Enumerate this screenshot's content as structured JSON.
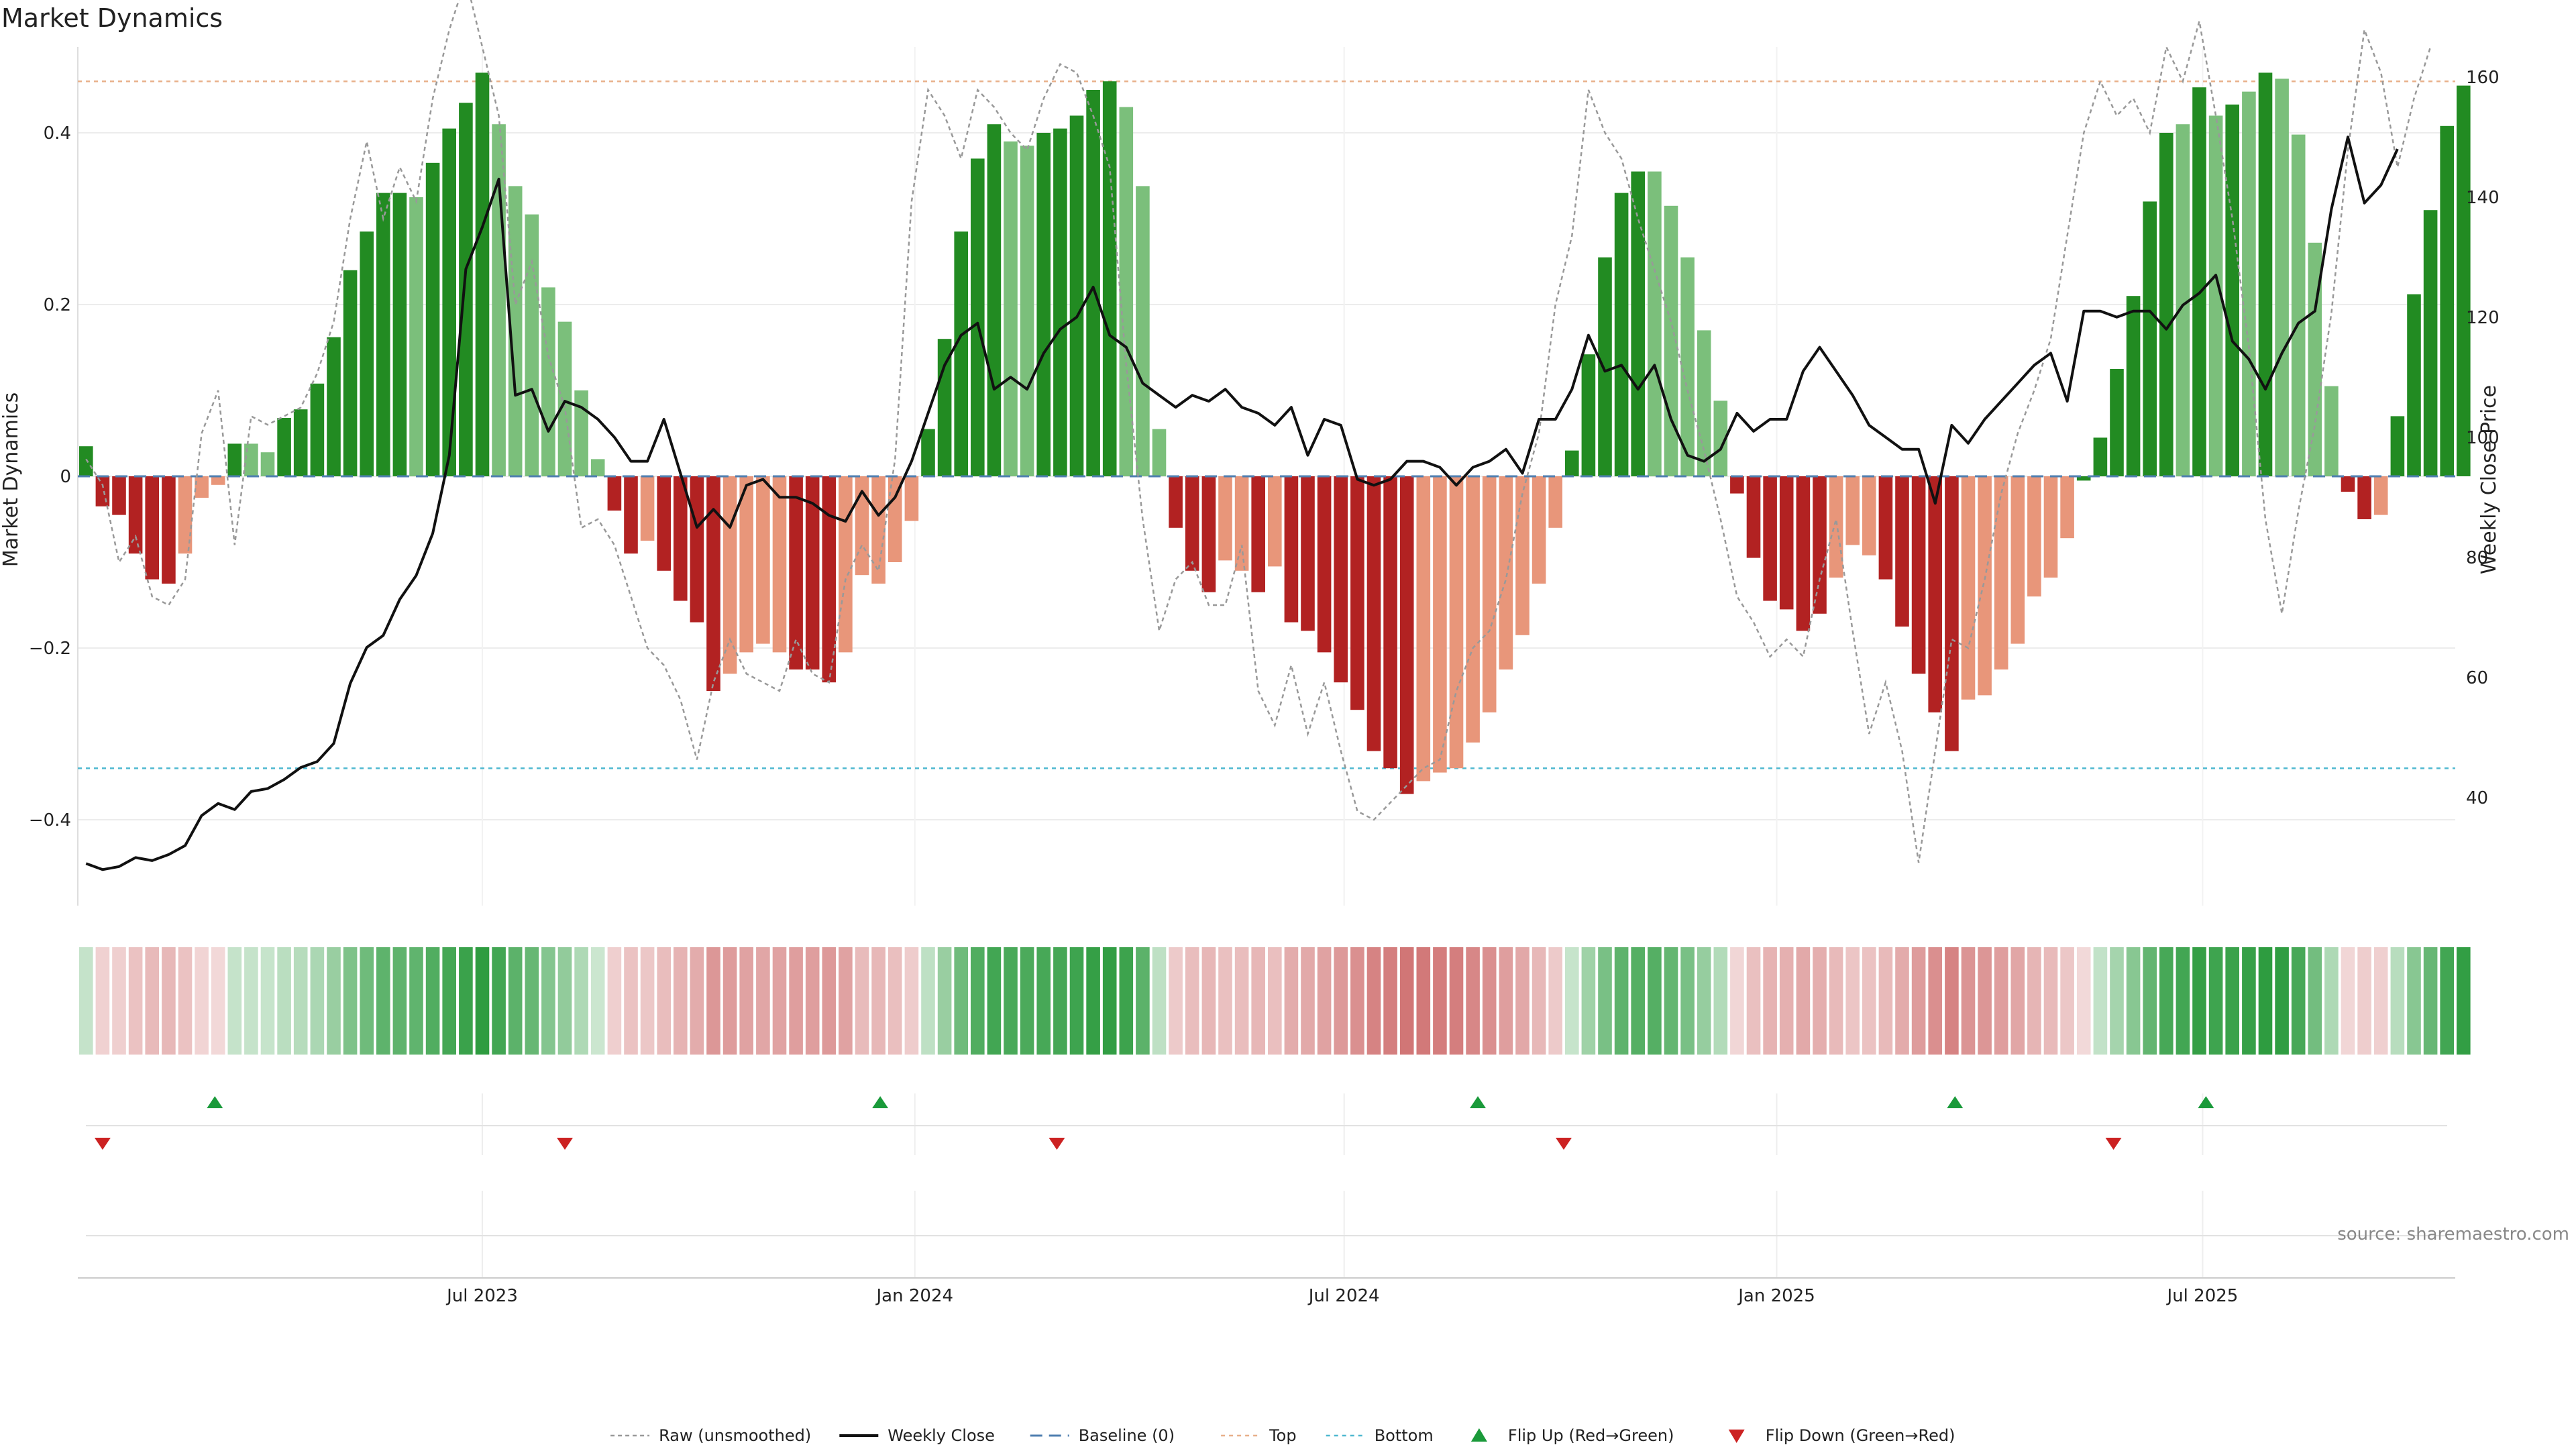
{
  "chart_data": {
    "type": "bar",
    "title": "Market Dynamics",
    "ylabel_left": "Market Dynamics",
    "ylabel_right": "Weekly Close Price",
    "ylim_left": [
      -0.5,
      0.5
    ],
    "ylim_right": [
      22,
      165
    ],
    "yticks_left": [
      "0.4",
      "0.2",
      "0",
      "−0.2",
      "−0.4"
    ],
    "yticks_left_values": [
      0.4,
      0.2,
      0,
      -0.2,
      -0.4
    ],
    "yticks_right": [
      "160",
      "140",
      "120",
      "100",
      "80",
      "60",
      "40"
    ],
    "yticks_right_values": [
      160,
      140,
      120,
      100,
      80,
      60,
      40
    ],
    "xticks": [
      {
        "label": "Jul 2023",
        "week": 24.5
      },
      {
        "label": "Jan 2024",
        "week": 50.7
      },
      {
        "label": "Jul 2024",
        "week": 76.7
      },
      {
        "label": "Jan 2025",
        "week": 102.9
      },
      {
        "label": "Jul 2025",
        "week": 128.7
      }
    ],
    "x_range": [
      0,
      144
    ],
    "top_level": 0.46,
    "bottom_level": -0.34,
    "baseline": 0,
    "values": [
      0.035,
      -0.035,
      -0.045,
      -0.09,
      -0.12,
      -0.125,
      -0.09,
      -0.025,
      -0.01,
      0.038,
      0.038,
      0.028,
      0.068,
      0.078,
      0.108,
      0.162,
      0.24,
      0.285,
      0.33,
      0.33,
      0.325,
      0.365,
      0.405,
      0.435,
      0.47,
      0.41,
      0.338,
      0.305,
      0.22,
      0.18,
      0.1,
      0.02,
      -0.04,
      -0.09,
      -0.075,
      -0.11,
      -0.145,
      -0.17,
      -0.25,
      -0.23,
      -0.205,
      -0.195,
      -0.205,
      -0.225,
      -0.225,
      -0.24,
      -0.205,
      -0.115,
      -0.125,
      -0.1,
      -0.052,
      0.055,
      0.16,
      0.285,
      0.37,
      0.41,
      0.39,
      0.385,
      0.4,
      0.405,
      0.42,
      0.45,
      0.46,
      0.43,
      0.338,
      0.055,
      -0.06,
      -0.11,
      -0.135,
      -0.098,
      -0.11,
      -0.135,
      -0.105,
      -0.17,
      -0.18,
      -0.205,
      -0.24,
      -0.272,
      -0.32,
      -0.34,
      -0.37,
      -0.355,
      -0.345,
      -0.34,
      -0.31,
      -0.275,
      -0.225,
      -0.185,
      -0.125,
      -0.06,
      0.03,
      0.142,
      0.255,
      0.33,
      0.355,
      0.355,
      0.315,
      0.255,
      0.17,
      0.088,
      -0.02,
      -0.095,
      -0.145,
      -0.155,
      -0.18,
      -0.16,
      -0.118,
      -0.08,
      -0.092,
      -0.12,
      -0.175,
      -0.23,
      -0.275,
      -0.32,
      -0.26,
      -0.255,
      -0.225,
      -0.195,
      -0.14,
      -0.118,
      -0.072,
      -0.005,
      0.045,
      0.125,
      0.21,
      0.32,
      0.4,
      0.41,
      0.453,
      0.42,
      0.433,
      0.448,
      0.47,
      0.463,
      0.398,
      0.272,
      0.105,
      -0.018,
      -0.05,
      -0.045,
      0.07,
      0.212,
      0.31,
      0.408,
      0.455
    ],
    "states": [
      "G",
      "R",
      "R",
      "R",
      "R",
      "R",
      "r",
      "r",
      "r",
      "G",
      "g",
      "g",
      "G",
      "G",
      "G",
      "G",
      "G",
      "G",
      "G",
      "G",
      "g",
      "G",
      "G",
      "G",
      "G",
      "g",
      "g",
      "g",
      "g",
      "g",
      "g",
      "g",
      "R",
      "R",
      "r",
      "R",
      "R",
      "R",
      "R",
      "r",
      "r",
      "r",
      "r",
      "R",
      "R",
      "R",
      "r",
      "r",
      "r",
      "r",
      "r",
      "G",
      "G",
      "G",
      "G",
      "G",
      "g",
      "g",
      "G",
      "G",
      "G",
      "G",
      "G",
      "g",
      "g",
      "g",
      "R",
      "R",
      "R",
      "r",
      "r",
      "R",
      "r",
      "R",
      "R",
      "R",
      "R",
      "R",
      "R",
      "R",
      "R",
      "r",
      "r",
      "r",
      "r",
      "r",
      "r",
      "r",
      "r",
      "r",
      "G",
      "G",
      "G",
      "G",
      "G",
      "g",
      "g",
      "g",
      "g",
      "g",
      "R",
      "R",
      "R",
      "R",
      "R",
      "R",
      "r",
      "r",
      "r",
      "R",
      "R",
      "R",
      "R",
      "R",
      "r",
      "r",
      "r",
      "r",
      "r",
      "r",
      "r",
      "G",
      "G",
      "G",
      "G",
      "G",
      "G",
      "g",
      "G",
      "g",
      "G",
      "g",
      "G",
      "g",
      "g",
      "g",
      "g",
      "R",
      "R",
      "r",
      "G",
      "G",
      "G",
      "G",
      "G"
    ],
    "raw_values": [
      0.02,
      -0.01,
      -0.1,
      -0.07,
      -0.14,
      -0.15,
      -0.12,
      0.05,
      0.1,
      -0.08,
      0.07,
      0.06,
      0.07,
      0.08,
      0.12,
      0.18,
      0.3,
      0.39,
      0.3,
      0.36,
      0.32,
      0.44,
      0.52,
      0.58,
      0.5,
      0.42,
      0.2,
      0.25,
      0.14,
      0.08,
      -0.06,
      -0.05,
      -0.08,
      -0.14,
      -0.2,
      -0.22,
      -0.26,
      -0.33,
      -0.24,
      -0.19,
      -0.23,
      -0.24,
      -0.25,
      -0.19,
      -0.23,
      -0.24,
      -0.12,
      -0.08,
      -0.11,
      0.02,
      0.32,
      0.45,
      0.42,
      0.37,
      0.45,
      0.43,
      0.4,
      0.38,
      0.44,
      0.48,
      0.47,
      0.42,
      0.36,
      0.13,
      -0.05,
      -0.18,
      -0.12,
      -0.1,
      -0.15,
      -0.15,
      -0.08,
      -0.25,
      -0.29,
      -0.22,
      -0.3,
      -0.24,
      -0.32,
      -0.39,
      -0.4,
      -0.38,
      -0.36,
      -0.34,
      -0.33,
      -0.25,
      -0.2,
      -0.18,
      -0.12,
      -0.02,
      0.05,
      0.2,
      0.28,
      0.45,
      0.4,
      0.37,
      0.3,
      0.24,
      0.18,
      0.1,
      0.03,
      -0.05,
      -0.14,
      -0.17,
      -0.21,
      -0.19,
      -0.21,
      -0.12,
      -0.05,
      -0.18,
      -0.3,
      -0.24,
      -0.32,
      -0.45,
      -0.32,
      -0.19,
      -0.2,
      -0.12,
      -0.02,
      0.05,
      0.1,
      0.16,
      0.28,
      0.4,
      0.46,
      0.42,
      0.44,
      0.4,
      0.5,
      0.46,
      0.53,
      0.42,
      0.3,
      0.15,
      -0.05,
      -0.16,
      -0.04,
      0.06,
      0.19,
      0.38,
      0.52,
      0.47,
      0.36,
      0.44,
      0.5
    ],
    "weekly_close": [
      29,
      28,
      28.5,
      30,
      29.5,
      30.5,
      32,
      37,
      39,
      38,
      41,
      41.5,
      43,
      45,
      46,
      49,
      59,
      65,
      67,
      73,
      77,
      84,
      97,
      128,
      135,
      143,
      107,
      108,
      101,
      106,
      105,
      103,
      100,
      96,
      96,
      103,
      94,
      85,
      88,
      85,
      92,
      93,
      90,
      90,
      89,
      87,
      86,
      91,
      87,
      90,
      96,
      104,
      112,
      117,
      119,
      108,
      110,
      108,
      114,
      118,
      120,
      125,
      117,
      115,
      109,
      107,
      105,
      107,
      106,
      108,
      105,
      104,
      102,
      105,
      97,
      103,
      102,
      93,
      92,
      93,
      96,
      96,
      95,
      92,
      95,
      96,
      98,
      94,
      103,
      103,
      108,
      117,
      111,
      112,
      108,
      112,
      103,
      97,
      96,
      98,
      104,
      101,
      103,
      103,
      111,
      115,
      111,
      107,
      102,
      100,
      98,
      98,
      89,
      102,
      99,
      103,
      106,
      109,
      112,
      114,
      106,
      121,
      121,
      120,
      121,
      121,
      118,
      122,
      124,
      127,
      116,
      113,
      108,
      114,
      119,
      121,
      138,
      150,
      139,
      142,
      148
    ],
    "flips_up_weeks": [
      8.3,
      48.6,
      84.8,
      113.7,
      128.9
    ],
    "flips_down_weeks": [
      1.5,
      29.5,
      59.3,
      90.0,
      123.3
    ],
    "legend": [
      {
        "label": "Raw (unsmoothed)",
        "kind": "raw"
      },
      {
        "label": "Weekly Close",
        "kind": "close"
      },
      {
        "label": "Baseline (0)",
        "kind": "baseline"
      },
      {
        "label": "Top",
        "kind": "top"
      },
      {
        "label": "Bottom",
        "kind": "bottom"
      },
      {
        "label": "Flip Up (Red→Green)",
        "kind": "flipup"
      },
      {
        "label": "Flip Down (Green→Red)",
        "kind": "flipdown"
      }
    ],
    "legend_position": "bottom-center",
    "colors": {
      "strong_green": "#228b22",
      "light_green": "#7bbf7b",
      "strong_red": "#b22222",
      "light_red": "#e8967a",
      "top_line": "#e8b08a",
      "bottom_line": "#4fb8d0",
      "baseline": "#4f7fb0",
      "raw": "#999999",
      "close": "#111111",
      "flip_up": "#1a9a3a",
      "flip_down": "#cc2222",
      "heat_green": "#2e9c40",
      "heat_red": "#c85a5a"
    }
  },
  "source": "source: sharemaestro.com"
}
